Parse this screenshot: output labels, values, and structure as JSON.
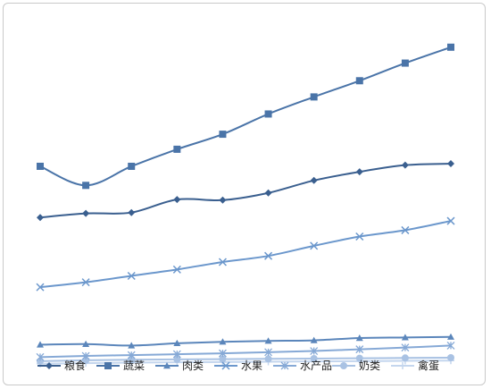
{
  "chart_data": {
    "type": "line",
    "title": "",
    "xlabel": "",
    "ylabel": "",
    "grid": false,
    "legend_position": "bottom",
    "x_count": 10,
    "series": [
      {
        "name": "粮食",
        "color": "#3a5f8f",
        "marker": "diamond",
        "values": [
          48.6,
          50.0,
          50.3,
          54.8,
          54.6,
          57.1,
          61.4,
          64.4,
          66.7,
          67.2
        ]
      },
      {
        "name": "蔬菜",
        "color": "#4a74a8",
        "marker": "square",
        "values": [
          66.3,
          59.7,
          66.3,
          72.2,
          77.4,
          84.4,
          90.3,
          95.9,
          102.0,
          107.5
        ]
      },
      {
        "name": "肉类",
        "color": "#5b86bb",
        "marker": "triangle",
        "values": [
          4.6,
          4.8,
          4.3,
          5.1,
          5.6,
          5.9,
          6.1,
          6.9,
          7.1,
          7.3
        ]
      },
      {
        "name": "水果",
        "color": "#6b97cc",
        "marker": "x",
        "values": [
          24.5,
          26.2,
          28.4,
          30.6,
          33.2,
          35.3,
          38.8,
          42.0,
          44.2,
          47.4
        ]
      },
      {
        "name": "水产品",
        "color": "#86a9d6",
        "marker": "star",
        "values": [
          0.3,
          0.7,
          1.0,
          1.3,
          1.6,
          2.0,
          2.4,
          3.0,
          3.6,
          4.3
        ]
      },
      {
        "name": "奶类",
        "color": "#a9c2e3",
        "marker": "circle",
        "values": [
          -1.1,
          -0.8,
          -0.6,
          -0.5,
          -0.4,
          -0.3,
          -0.2,
          -0.1,
          0.0,
          0.1
        ]
      },
      {
        "name": "禽蛋",
        "color": "#c4d6ee",
        "marker": "plus",
        "values": [
          -2.0,
          -1.8,
          -1.6,
          -1.5,
          -1.4,
          -1.3,
          -1.2,
          -1.1,
          -1.0,
          -0.9
        ]
      }
    ],
    "ylim": [
      -3,
      113
    ]
  }
}
